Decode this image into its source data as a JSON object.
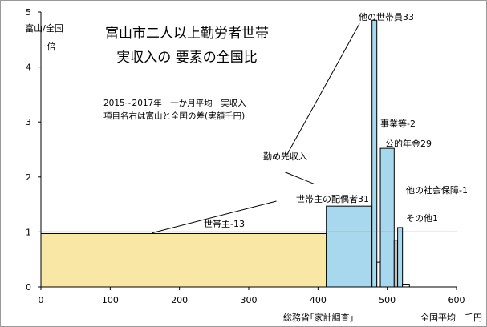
{
  "chart_data": {
    "type": "bar",
    "title_line1": "富山市二人以上勤労者世帯",
    "title_line2": "実収入の 要素の全国比",
    "note_line1": "2015~2017年　一か月平均　実収入",
    "note_line2": "項目名右は富山と全国の差(実額千円)",
    "ylabel": "富山/全国",
    "ylabel_unit": "倍",
    "xlabel": "全国平均　千円",
    "source": "総務省｢家計調査｣",
    "xlim": [
      0,
      600
    ],
    "ylim": [
      0,
      5
    ],
    "xticks": [
      0,
      100,
      200,
      300,
      400,
      500,
      600
    ],
    "yticks": [
      0,
      1,
      2,
      3,
      4,
      5
    ],
    "reference_line": 1,
    "colors": {
      "base_bar": "#f8e7a5",
      "income_bars": "#a7d8ee",
      "reference_line": "#e03030",
      "gray_bar": "#c0c0c0"
    },
    "bars": [
      {
        "label": "世帯主-13",
        "x0": 0,
        "x1": 412,
        "value": 0.97,
        "color": "#f8e7a5"
      },
      {
        "label": "世帯主の配偶者31",
        "x0": 412,
        "x1": 478,
        "value": 1.47,
        "color": "#a7d8ee"
      },
      {
        "label": "他の世帯員33",
        "x0": 478,
        "x1": 485,
        "value": 4.85,
        "color": "#a7d8ee"
      },
      {
        "label": "事業等-2",
        "x0": 485,
        "x1": 490,
        "value": 0.45,
        "color": "#ffffff"
      },
      {
        "label": "公的年金29",
        "x0": 490,
        "x1": 510,
        "value": 2.52,
        "color": "#a7d8ee"
      },
      {
        "label": "他の社会保障-1",
        "x0": 510,
        "x1": 515,
        "value": 0.85,
        "color": "#c0c0c0"
      },
      {
        "label": "その他1",
        "x0": 515,
        "x1": 522,
        "value": 1.08,
        "color": "#a7d8ee"
      },
      {
        "label": "",
        "x0": 522,
        "x1": 532,
        "value": 0.05,
        "color": "#ffffff"
      }
    ],
    "group_label": "勤め先収入"
  }
}
